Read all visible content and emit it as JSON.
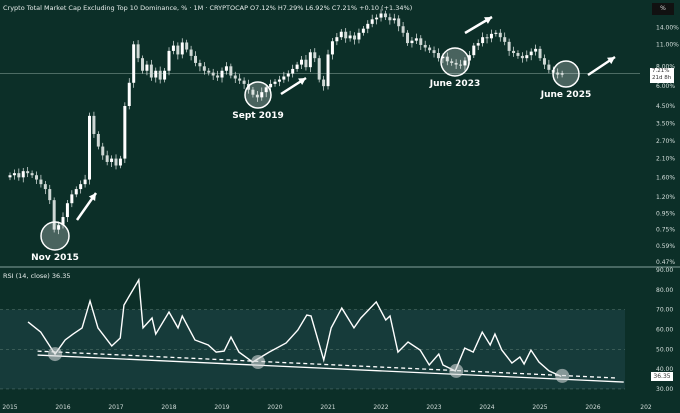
{
  "header": {
    "title": "Crypto Total Market Cap Excluding Top 10 Dominance, % · 1M · CRYPTOCAP  O7.12%  H7.29%  L6.92%  C7.21%  +0.10 (+1.34%)",
    "scale_button": "%",
    "price_tag": "7.21%",
    "countdown": "21d 8h"
  },
  "rsi_header": {
    "title": "RSI (14, close)  36.35",
    "tag": "36.35"
  },
  "colors": {
    "background": "#0c2f28",
    "candle": "#ffffff",
    "rsi_line": "#ffffff",
    "rsi_band": "#163b3a",
    "annotation": "#ffffff"
  },
  "chart_data": [
    {
      "type": "candlestick",
      "title": "Crypto Total Market Cap Excluding Top 10 Dominance, %",
      "interval": "1M",
      "start": "2015-01",
      "scale": "log",
      "y_ticks": [
        "14.00%",
        "11.00%",
        "8.00%",
        "6.00%",
        "4.50%",
        "3.50%",
        "2.70%",
        "2.10%",
        "1.60%",
        "1.20%",
        "0.95%",
        "0.75%",
        "0.59%",
        "0.47%"
      ],
      "y_tick_values": [
        14,
        11,
        8,
        6,
        4.5,
        3.5,
        2.7,
        2.1,
        1.6,
        1.2,
        0.95,
        0.75,
        0.59,
        0.47
      ],
      "x_ticks": [
        "2015",
        "2016",
        "2017",
        "2018",
        "2019",
        "2020",
        "2021",
        "2022",
        "2023",
        "2024",
        "2025",
        "2026",
        "202"
      ],
      "current": 7.21,
      "closes": [
        1.65,
        1.7,
        1.6,
        1.75,
        1.7,
        1.65,
        1.55,
        1.45,
        1.35,
        1.15,
        0.75,
        0.8,
        0.9,
        1.1,
        1.25,
        1.35,
        1.45,
        1.55,
        3.9,
        3.0,
        2.5,
        2.2,
        2.0,
        2.1,
        1.9,
        2.1,
        4.5,
        6.3,
        11.0,
        9.0,
        7.5,
        8.2,
        6.8,
        7.5,
        6.6,
        7.5,
        10.0,
        10.8,
        9.5,
        11.3,
        10.2,
        9.3,
        8.4,
        8.0,
        7.5,
        7.3,
        7.0,
        6.8,
        7.5,
        8.0,
        7.0,
        6.7,
        6.5,
        6.2,
        5.7,
        5.3,
        5.1,
        5.5,
        5.9,
        6.2,
        6.4,
        6.6,
        6.9,
        7.2,
        7.7,
        8.2,
        8.8,
        7.9,
        9.8,
        9.0,
        6.6,
        6.0,
        9.5,
        11.5,
        12.2,
        13.2,
        12.0,
        12.5,
        11.8,
        13.0,
        13.8,
        14.8,
        15.8,
        16.2,
        17.2,
        16.3,
        15.6,
        16.0,
        14.3,
        13.0,
        11.2,
        11.6,
        12.0,
        10.9,
        10.5,
        10.1,
        9.7,
        9.0,
        9.2,
        8.6,
        8.4,
        8.2,
        8.1,
        8.7,
        9.4,
        10.8,
        11.2,
        12.2,
        12.0,
        12.8,
        13.0,
        12.2,
        11.4,
        10.0,
        9.7,
        9.3,
        9.0,
        9.4,
        9.9,
        10.3,
        9.0,
        8.2,
        7.6,
        7.3,
        7.1,
        7.21
      ],
      "annotations": [
        {
          "label": "Nov 2015",
          "date": 2015.85,
          "value": 0.78
        },
        {
          "label": "Sept 2019",
          "date": 2019.68,
          "value": 5.3
        },
        {
          "label": "June 2023",
          "date": 2023.42,
          "value": 8.5
        },
        {
          "label": "June 2025",
          "date": 2025.45,
          "value": 7.2
        }
      ]
    },
    {
      "type": "line",
      "title": "RSI (14, close)",
      "last": 36.35,
      "ylim": [
        30,
        90
      ],
      "y_ticks": [
        "90.00",
        "80.00",
        "70.00",
        "60.00",
        "50.00",
        "40.00",
        "30.00"
      ],
      "y_tick_values": [
        90,
        80,
        70,
        60,
        50,
        40,
        30
      ],
      "band": [
        30,
        70
      ],
      "x": [
        2015.34,
        2015.58,
        2015.85,
        2016.04,
        2016.19,
        2016.36,
        2016.51,
        2016.66,
        2016.92,
        2017.08,
        2017.15,
        2017.43,
        2017.51,
        2017.68,
        2017.75,
        2018.0,
        2018.17,
        2018.25,
        2018.49,
        2018.74,
        2018.89,
        2019.04,
        2019.17,
        2019.32,
        2019.58,
        2019.89,
        2020.21,
        2020.43,
        2020.6,
        2020.68,
        2020.92,
        2021.06,
        2021.26,
        2021.49,
        2021.62,
        2021.91,
        2022.09,
        2022.17,
        2022.32,
        2022.51,
        2022.74,
        2022.91,
        2023.09,
        2023.17,
        2023.4,
        2023.58,
        2023.74,
        2023.91,
        2024.06,
        2024.15,
        2024.28,
        2024.47,
        2024.62,
        2024.7,
        2024.83,
        2024.98,
        2025.17,
        2025.4
      ],
      "values": [
        63.8,
        58.7,
        47.6,
        54.7,
        57.7,
        60.8,
        74.4,
        60.8,
        51.7,
        55.7,
        72.3,
        85,
        60.8,
        65.8,
        57.7,
        68.8,
        60.8,
        66.8,
        54.7,
        52.2,
        48.6,
        49.1,
        56.2,
        48.6,
        43.6,
        48.6,
        53.2,
        59.7,
        67.3,
        66.8,
        44.6,
        60.8,
        70.8,
        60.8,
        65.8,
        73.9,
        64.8,
        66.8,
        48.6,
        53.7,
        49.6,
        42.1,
        47.6,
        42.1,
        39.1,
        50.6,
        48.6,
        58.7,
        52.2,
        57.7,
        49.6,
        43.1,
        46.1,
        42.6,
        49.6,
        43.6,
        39.1,
        36.35
      ],
      "trendlines": [
        {
          "style": "solid",
          "from": [
            2015.52,
            47.1
          ],
          "to": [
            2026.58,
            33.5
          ]
        },
        {
          "style": "dashed",
          "from": [
            2015.52,
            49.1
          ],
          "to": [
            2026.47,
            35.5
          ]
        }
      ],
      "touch_points": [
        [
          2015.85,
          47.6
        ],
        [
          2019.68,
          43.6
        ],
        [
          2023.42,
          39.1
        ],
        [
          2025.42,
          36.6
        ]
      ]
    }
  ]
}
